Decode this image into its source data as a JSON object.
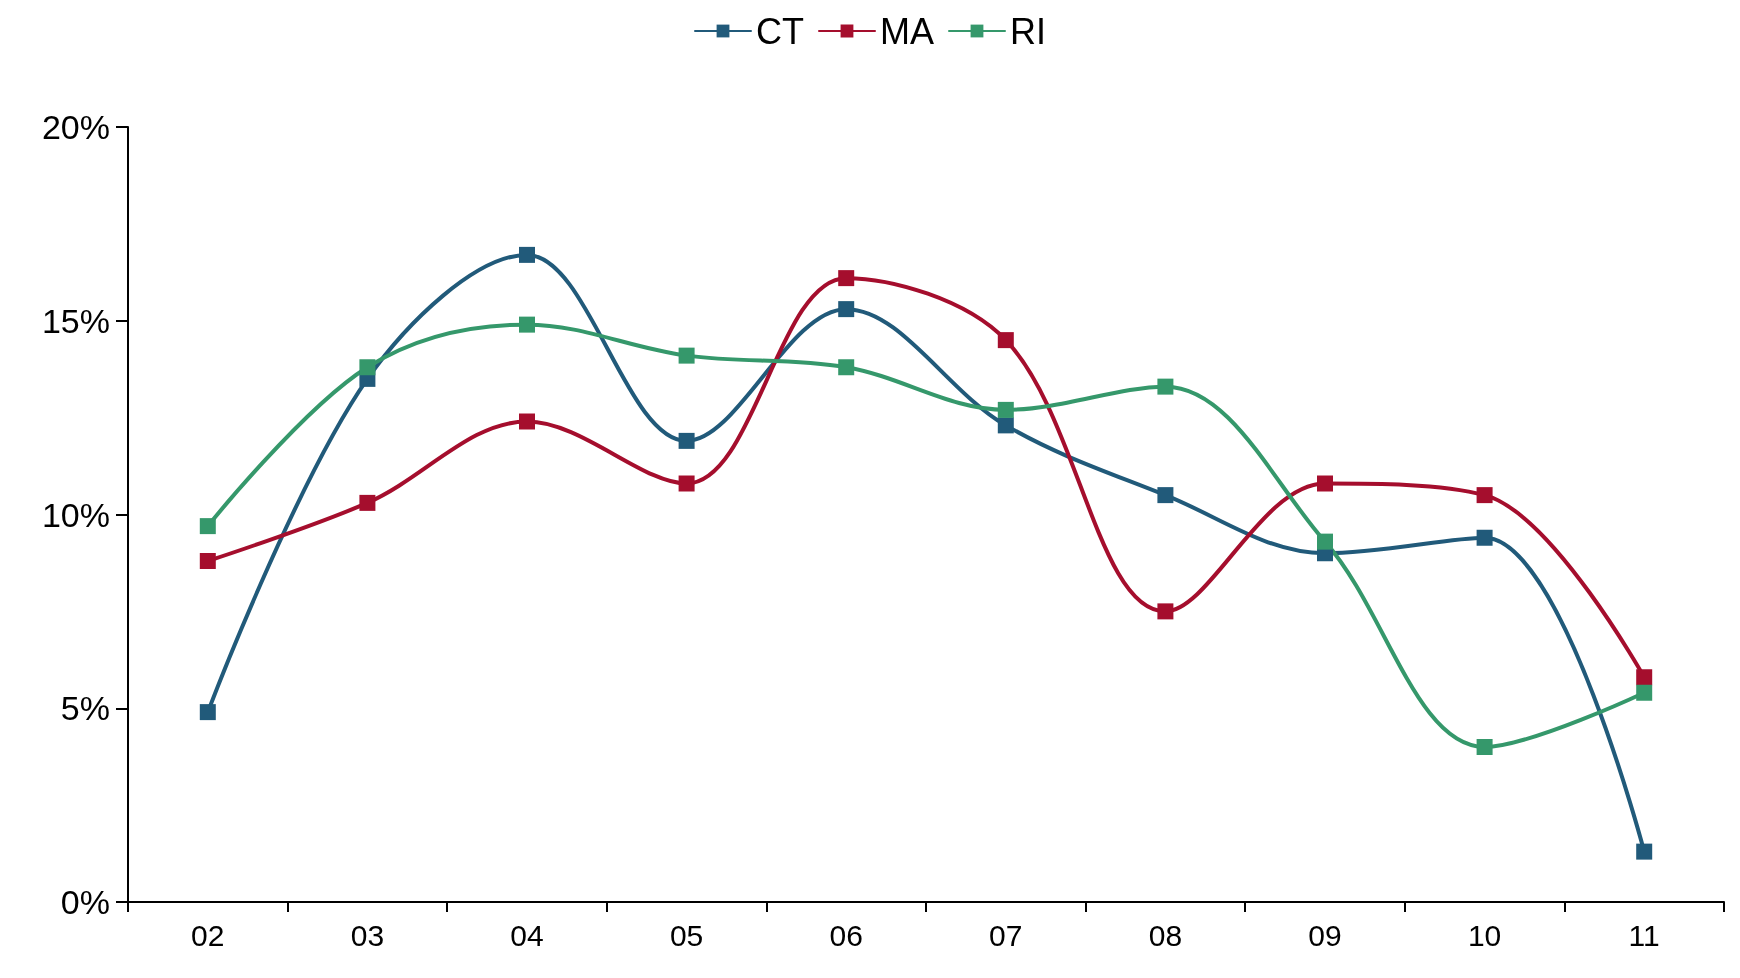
{
  "chart_data": {
    "type": "line",
    "categories": [
      "02",
      "03",
      "04",
      "05",
      "06",
      "07",
      "08",
      "09",
      "10",
      "11"
    ],
    "series": [
      {
        "name": "CT",
        "color": "#215a7a",
        "values": [
          4.9,
          13.5,
          16.7,
          11.9,
          15.3,
          12.3,
          10.5,
          9.0,
          9.4,
          1.3
        ]
      },
      {
        "name": "MA",
        "color": "#a50e2d",
        "values": [
          8.8,
          10.3,
          12.4,
          10.8,
          16.1,
          14.5,
          7.5,
          10.8,
          10.5,
          5.8
        ]
      },
      {
        "name": "RI",
        "color": "#35986b",
        "values": [
          9.7,
          13.8,
          14.9,
          14.1,
          13.8,
          12.7,
          13.3,
          9.3,
          4.0,
          5.4
        ]
      }
    ],
    "ylim": [
      0,
      20
    ],
    "yticks": [
      {
        "value": 0,
        "label": "0%"
      },
      {
        "value": 5,
        "label": "5%"
      },
      {
        "value": 10,
        "label": "10%"
      },
      {
        "value": 15,
        "label": "15%"
      },
      {
        "value": 20,
        "label": "20%"
      }
    ],
    "grid": false,
    "legend": "top",
    "marker": "square",
    "line_style": "solid"
  }
}
